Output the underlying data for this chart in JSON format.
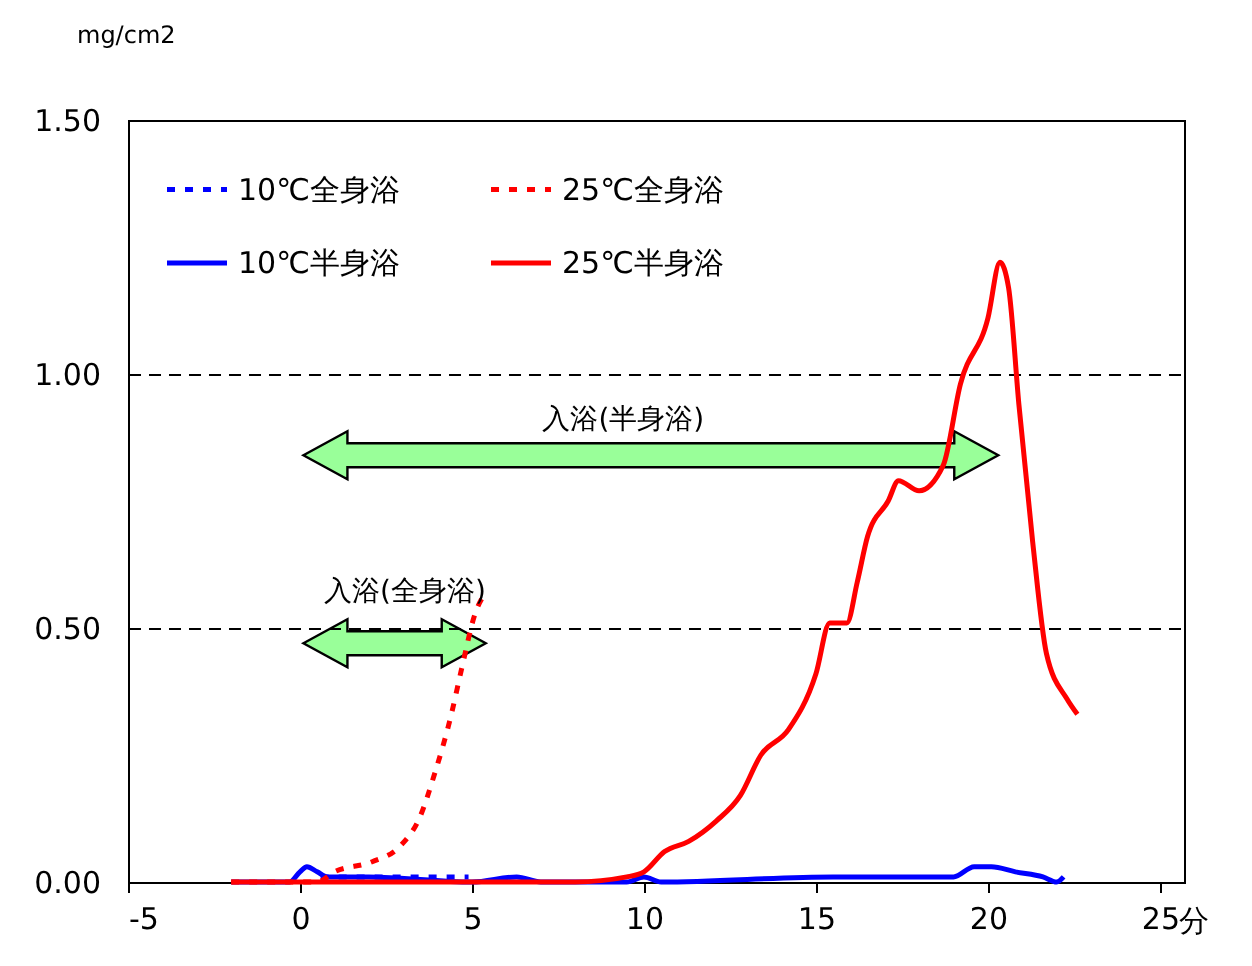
{
  "chart_data": {
    "type": "line",
    "ylabel": "mg/cm2",
    "xlabel": "分",
    "xlim": [
      -5,
      25.7
    ],
    "xticks": [
      -5,
      0,
      5,
      10,
      15,
      20,
      25
    ],
    "ylim": [
      0,
      1.5
    ],
    "yticks": [
      {
        "value": 0,
        "label": "0.00"
      },
      {
        "value": 0.5,
        "label": "0.50"
      },
      {
        "value": 1,
        "label": "1.00"
      },
      {
        "value": 1.5,
        "label": "1.50"
      }
    ],
    "grid": "y",
    "legend": "top left",
    "marker": "none",
    "annotations": [
      "入浴(全身浴)",
      "入浴(半身浴)"
    ],
    "series": [
      {
        "name": "10℃全身浴",
        "color": "#0000ff",
        "line_style": "dashed",
        "x": [
          0.6,
          1,
          2,
          3,
          3.5,
          4,
          4.9
        ],
        "values": [
          0.01,
          0.01,
          0.01,
          0.01,
          0.01,
          0.01,
          0.01
        ]
      },
      {
        "name": "10℃半身浴",
        "color": "#0000ff",
        "line_style": "solid",
        "x": [
          -2,
          -0.3,
          0,
          0.2,
          0.5,
          0.8,
          2,
          5,
          6.3,
          7,
          9.5,
          10,
          10.5,
          15.5,
          18,
          19,
          19.6,
          20.1,
          20.8,
          21.6,
          22,
          22.2
        ],
        "values": [
          0,
          0,
          0.02,
          0.03,
          0.02,
          0.01,
          0.01,
          0,
          0.01,
          0,
          0,
          0.01,
          0,
          0.01,
          0.01,
          0.01,
          0.03,
          0.03,
          0.02,
          0.01,
          0,
          0.01
        ]
      },
      {
        "name": "25℃全身浴",
        "color": "#ff0000",
        "line_style": "dashed",
        "x": [
          -2,
          0.5,
          1,
          2.1,
          2.9,
          3.5,
          3.9,
          4.4,
          4.7,
          5.1,
          5.4
        ],
        "values": [
          0,
          0,
          0.02,
          0.04,
          0.07,
          0.13,
          0.21,
          0.33,
          0.42,
          0.53,
          0.57
        ]
      },
      {
        "name": "25℃半身浴",
        "color": "#ff0000",
        "line_style": "solid",
        "x": [
          -2,
          8,
          9.5,
          10,
          10.6,
          11.3,
          12.1,
          12.8,
          13.4,
          14.2,
          15,
          15.4,
          15.9,
          16.2,
          16.5,
          17.1,
          17.4,
          18,
          18.7,
          19.2,
          20,
          20.35,
          20.6,
          20.9,
          21.3,
          21.7,
          22.3,
          22.6
        ],
        "values": [
          0,
          0,
          0.01,
          0.02,
          0.06,
          0.08,
          0.12,
          0.17,
          0.25,
          0.3,
          0.41,
          0.51,
          0.51,
          0.59,
          0.68,
          0.75,
          0.79,
          0.77,
          0.82,
          0.98,
          1.11,
          1.22,
          1.17,
          0.94,
          0.67,
          0.45,
          0.36,
          0.33
        ]
      }
    ]
  }
}
